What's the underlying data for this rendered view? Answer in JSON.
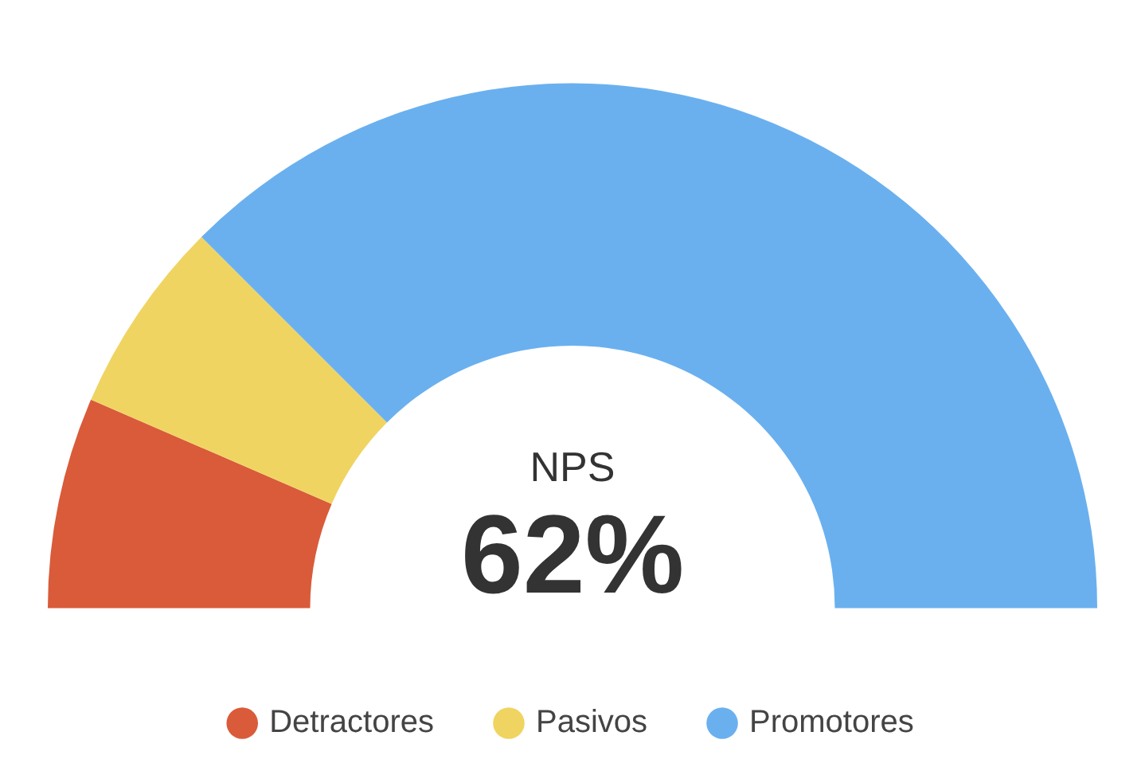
{
  "chart_data": {
    "type": "donut",
    "categories": [
      "Detractores",
      "Pasivos",
      "Promotores"
    ],
    "values": [
      13,
      12,
      75
    ],
    "colors": [
      "#d95b3a",
      "#f0d462",
      "#6ab0ef"
    ],
    "annotations": [
      "NPS",
      "62%"
    ],
    "legend": "bottom"
  }
}
